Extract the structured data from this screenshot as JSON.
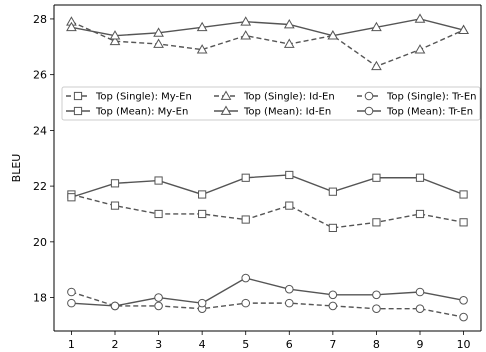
{
  "chart_data": {
    "type": "line",
    "xlabel": "",
    "ylabel": "BLEU",
    "x": [
      1,
      2,
      3,
      4,
      5,
      6,
      7,
      8,
      9,
      10
    ],
    "xticks": [
      1,
      2,
      3,
      4,
      5,
      6,
      7,
      8,
      9,
      10
    ],
    "yticks": [
      18,
      20,
      22,
      24,
      26,
      28
    ],
    "xlim": [
      0.6,
      10.4
    ],
    "ylim": [
      16.8,
      28.5
    ],
    "grid": false,
    "legend_placement": "center-left",
    "series": [
      {
        "name": "Top (Single): My-En",
        "marker": "square",
        "style": "dashed",
        "color": "#555555",
        "values": [
          21.7,
          21.3,
          21.0,
          21.0,
          20.8,
          21.3,
          20.5,
          20.7,
          21.0,
          20.7
        ]
      },
      {
        "name": "Top (Mean): My-En",
        "marker": "square",
        "style": "solid",
        "color": "#555555",
        "values": [
          21.6,
          22.1,
          22.2,
          21.7,
          22.3,
          22.4,
          21.8,
          22.3,
          22.3,
          21.7
        ]
      },
      {
        "name": "Top (Single): Id-En",
        "marker": "triangle",
        "style": "dashed",
        "color": "#555555",
        "values": [
          27.9,
          27.2,
          27.1,
          26.9,
          27.4,
          27.1,
          27.4,
          26.3,
          26.9,
          27.6
        ]
      },
      {
        "name": "Top (Mean): Id-En",
        "marker": "triangle",
        "style": "solid",
        "color": "#555555",
        "values": [
          27.7,
          27.4,
          27.5,
          27.7,
          27.9,
          27.8,
          27.4,
          27.7,
          28.0,
          27.6
        ]
      },
      {
        "name": "Top (Single): Tr-En",
        "marker": "circle",
        "style": "dashed",
        "color": "#555555",
        "values": [
          18.2,
          17.7,
          17.7,
          17.6,
          17.8,
          17.8,
          17.7,
          17.6,
          17.6,
          17.3
        ]
      },
      {
        "name": "Top (Mean): Tr-En",
        "marker": "circle",
        "style": "solid",
        "color": "#555555",
        "values": [
          17.8,
          17.7,
          18.0,
          17.8,
          18.7,
          18.3,
          18.1,
          18.1,
          18.2,
          17.9
        ]
      }
    ]
  }
}
